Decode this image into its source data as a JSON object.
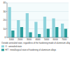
{
  "chart_data": {
    "type": "bar",
    "categories": [
      "1000",
      "2000",
      "3000",
      "4000",
      "5000",
      "6000",
      "7000"
    ],
    "series": [
      {
        "name": "O : annealed state",
        "color": "#8fd3dc",
        "values": [
          35,
          20,
          28,
          18,
          24,
          22,
          16
        ]
      },
      {
        "name": "H/T : metallurgical state of hardening of aluminium alloys",
        "color": "#2a9d9c",
        "values": [
          8,
          12,
          6,
          4,
          10,
          12,
          10
        ]
      }
    ],
    "ylim": [
      0,
      40
    ],
    "yticks": [
      0,
      10,
      20,
      30,
      40
    ],
    "grid": true,
    "legend": "bottom",
    "annotations": [
      "Outside annealed state, regardless of the hardening mode of aluminium alloys"
    ]
  }
}
